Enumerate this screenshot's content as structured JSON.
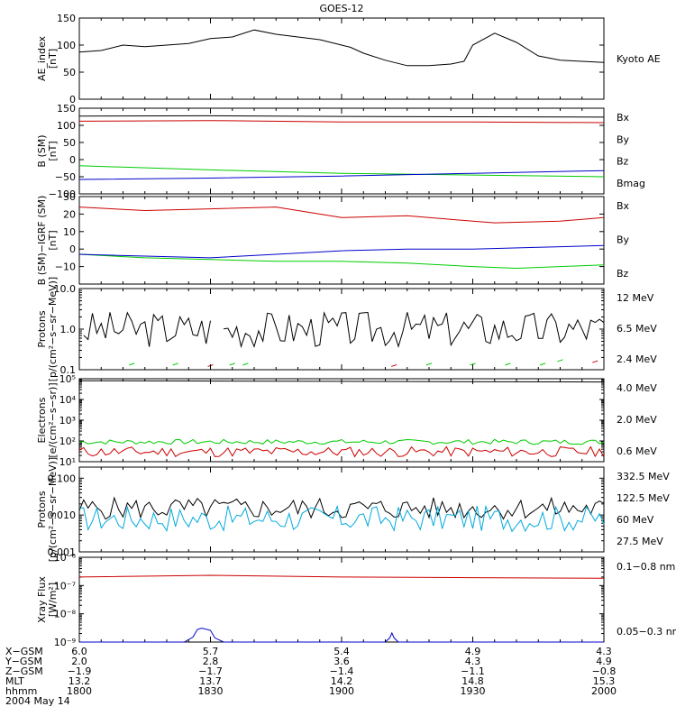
{
  "title": "GOES-12",
  "colors": {
    "black": "#000000",
    "red": "#cc0000",
    "green": "#00cc00",
    "blue": "#0000cc",
    "yellow": "#ffdd00",
    "cyan": "#00aadd"
  },
  "chart_data": [
    {
      "id": "ae",
      "type": "line",
      "ylabel": [
        "AE_index",
        "[nT]"
      ],
      "scale": "linear",
      "ylim": [
        0,
        150
      ],
      "yticks": [
        {
          "v": 0,
          "l": "0"
        },
        {
          "v": 50,
          "l": "50"
        },
        {
          "v": 100,
          "l": "100"
        },
        {
          "v": 150,
          "l": "150"
        }
      ],
      "legend": [
        {
          "text": "Kyoto AE",
          "color": "black"
        }
      ],
      "series": [
        {
          "name": "Kyoto AE",
          "color": "black",
          "x": [
            0,
            5,
            10,
            15,
            20,
            25,
            30,
            35,
            40,
            45,
            50,
            55,
            60,
            62,
            65,
            70,
            75,
            80,
            85,
            88,
            90,
            95,
            100,
            105,
            110,
            115,
            120
          ],
          "y": [
            87,
            90,
            100,
            97,
            100,
            103,
            112,
            115,
            128,
            120,
            115,
            110,
            100,
            96,
            85,
            72,
            62,
            62,
            65,
            70,
            100,
            122,
            105,
            80,
            72,
            70,
            68
          ]
        }
      ]
    },
    {
      "id": "b",
      "type": "line",
      "ylabel": [
        "B (SM)",
        "[nT]"
      ],
      "scale": "linear",
      "ylim": [
        -100,
        150
      ],
      "yticks": [
        {
          "v": -100,
          "l": "−100"
        },
        {
          "v": -50,
          "l": "−50"
        },
        {
          "v": 0,
          "l": "0"
        },
        {
          "v": 50,
          "l": "50"
        },
        {
          "v": 100,
          "l": "100"
        },
        {
          "v": 150,
          "l": "150"
        }
      ],
      "legend": [
        {
          "text": "Bx",
          "color": "blue"
        },
        {
          "text": "By",
          "color": "green"
        },
        {
          "text": "Bz",
          "color": "red"
        },
        {
          "text": "Bmag",
          "color": "black"
        }
      ],
      "series": [
        {
          "name": "Bmag",
          "color": "black",
          "x": [
            0,
            30,
            60,
            90,
            120
          ],
          "y": [
            127,
            128,
            126,
            125,
            124
          ]
        },
        {
          "name": "Bz",
          "color": "red",
          "x": [
            0,
            30,
            60,
            90,
            120
          ],
          "y": [
            112,
            114,
            110,
            110,
            108
          ]
        },
        {
          "name": "By",
          "color": "green",
          "x": [
            0,
            30,
            60,
            90,
            120
          ],
          "y": [
            -18,
            -30,
            -40,
            -45,
            -50
          ]
        },
        {
          "name": "Bx",
          "color": "blue",
          "x": [
            0,
            30,
            60,
            90,
            120
          ],
          "y": [
            -58,
            -54,
            -48,
            -40,
            -32
          ]
        }
      ]
    },
    {
      "id": "bigrf",
      "type": "line",
      "ylabel": [
        "B (SM)−IGRF (SM)",
        "[nT]"
      ],
      "scale": "linear",
      "ylim": [
        -20,
        30
      ],
      "yticks": [
        {
          "v": -20,
          "l": ""
        },
        {
          "v": -10,
          "l": "−10"
        },
        {
          "v": 0,
          "l": "0"
        },
        {
          "v": 10,
          "l": "10"
        },
        {
          "v": 20,
          "l": "20"
        },
        {
          "v": 30,
          "l": "30"
        }
      ],
      "legend": [
        {
          "text": "Bx",
          "color": "blue"
        },
        {
          "text": "By",
          "color": "green"
        },
        {
          "text": "Bz",
          "color": "red"
        }
      ],
      "series": [
        {
          "name": "Bz",
          "color": "red",
          "x": [
            0,
            15,
            30,
            45,
            55,
            60,
            75,
            90,
            95,
            110,
            120
          ],
          "y": [
            24,
            22,
            23,
            24,
            20,
            18,
            19,
            16,
            15,
            16,
            18
          ]
        },
        {
          "name": "By",
          "color": "green",
          "x": [
            0,
            15,
            30,
            45,
            60,
            75,
            90,
            100,
            110,
            120
          ],
          "y": [
            -3,
            -5,
            -6,
            -7,
            -7,
            -8,
            -10,
            -11,
            -10,
            -9
          ]
        },
        {
          "name": "Bx",
          "color": "blue",
          "x": [
            0,
            15,
            30,
            45,
            60,
            75,
            90,
            105,
            120
          ],
          "y": [
            -3,
            -4,
            -5,
            -3,
            -1,
            0,
            0,
            1,
            2
          ]
        }
      ]
    },
    {
      "id": "protons_low",
      "type": "line",
      "ylabel": [
        "Protons",
        "[p/(cm²−s−sr−MeV)]"
      ],
      "scale": "log",
      "ylim": [
        0.1,
        10
      ],
      "yticks": [
        {
          "v": 0.1,
          "l": "0.1"
        },
        {
          "v": 1,
          "l": "1.0"
        },
        {
          "v": 10,
          "l": "10.0"
        }
      ],
      "legend": [
        {
          "text": "12 MeV",
          "color": "red"
        },
        {
          "text": "6.5 MeV",
          "color": "green"
        },
        {
          "text": "2.4 MeV",
          "color": "black"
        }
      ],
      "series": [
        {
          "name": "2.4 MeV",
          "color": "black",
          "noise": {
            "center": 1.0,
            "spread": 0.45,
            "seed": 3
          },
          "x": [
            1,
            30
          ],
          "x2": [
            33,
            120
          ]
        },
        {
          "name": "6.5 MeV",
          "color": "green",
          "marks": [
            [
              12,
              0.13
            ],
            [
              22,
              0.13
            ],
            [
              35,
              0.13
            ],
            [
              38,
              0.13
            ],
            [
              80,
              0.13
            ],
            [
              90,
              0.13
            ],
            [
              98,
              0.13
            ],
            [
              106,
              0.13
            ],
            [
              110,
              0.16
            ]
          ]
        },
        {
          "name": "12 MeV",
          "color": "red",
          "marks": [
            [
              30,
              0.12
            ],
            [
              72,
              0.12
            ],
            [
              118,
              0.15
            ]
          ]
        }
      ]
    },
    {
      "id": "electrons",
      "type": "line",
      "ylabel": [
        "Electrons",
        "[e/(cm²−s−sr)]"
      ],
      "scale": "log",
      "ylim": [
        10,
        100000
      ],
      "yticks": [
        {
          "v": 10,
          "l": "10¹"
        },
        {
          "v": 100,
          "l": "10²"
        },
        {
          "v": 1000,
          "l": "10³"
        },
        {
          "v": 10000,
          "l": "10⁴"
        },
        {
          "v": 100000,
          "l": "10⁵"
        }
      ],
      "legend": [
        {
          "text": "4.0 MeV",
          "color": "red"
        },
        {
          "text": "2.0 MeV",
          "color": "green"
        },
        {
          "text": "0.6 MeV",
          "color": "black"
        }
      ],
      "series": [
        {
          "name": "0.6 MeV",
          "color": "black",
          "x": [
            0,
            60,
            120
          ],
          "y": [
            80000,
            75000,
            70000
          ]
        },
        {
          "name": "2.0 MeV",
          "color": "green",
          "noise": {
            "center": 90,
            "spread": 0.12,
            "seed": 7
          }
        },
        {
          "name": "4.0 MeV",
          "color": "red",
          "noise": {
            "center": 30,
            "spread": 0.25,
            "seed": 11
          }
        }
      ]
    },
    {
      "id": "protons_high",
      "type": "line",
      "ylabel": [
        "Protons",
        "[p/(cm²−s−sr−MeV)]"
      ],
      "scale": "log",
      "ylim": [
        0.001,
        0.2
      ],
      "yticks": [
        {
          "v": 0.001,
          "l": "0.001"
        },
        {
          "v": 0.01,
          "l": "0.010"
        },
        {
          "v": 0.1,
          "l": "0.100"
        }
      ],
      "legend": [
        {
          "text": "332.5 MeV",
          "color": "red"
        },
        {
          "text": "122.5 MeV",
          "color": "yellow"
        },
        {
          "text": "60 MeV",
          "color": "cyan"
        },
        {
          "text": "27.5 MeV",
          "color": "black"
        }
      ],
      "series": [
        {
          "name": "27.5 MeV",
          "color": "black",
          "noise": {
            "center": 0.015,
            "spread": 0.3,
            "seed": 5
          }
        },
        {
          "name": "60 MeV",
          "color": "cyan",
          "noise": {
            "center": 0.008,
            "spread": 0.35,
            "seed": 17
          }
        }
      ]
    },
    {
      "id": "xray",
      "type": "line",
      "ylabel": [
        "Xray Flux",
        "[W/m²]"
      ],
      "scale": "log",
      "ylim": [
        1e-09,
        1e-06
      ],
      "yticks": [
        {
          "v": 1e-09,
          "l": "10⁻⁹"
        },
        {
          "v": 1e-08,
          "l": "10⁻⁸"
        },
        {
          "v": 1e-07,
          "l": "10⁻⁷"
        },
        {
          "v": 1e-06,
          "l": "10⁻⁶"
        }
      ],
      "legend": [
        {
          "text": "0.1−0.8 nm",
          "color": "red"
        },
        {
          "text": "0.05−0.3 nm",
          "color": "blue"
        }
      ],
      "series": [
        {
          "name": "0.1−0.8 nm",
          "color": "red",
          "x": [
            0,
            30,
            60,
            90,
            120
          ],
          "y": [
            2e-07,
            2.3e-07,
            2e-07,
            1.9e-07,
            1.8e-07
          ]
        },
        {
          "name": "0.05−0.3 nm",
          "color": "blue",
          "x": [
            0,
            24,
            26,
            27,
            28,
            30,
            31,
            33,
            70,
            71,
            71.5,
            72,
            73,
            120
          ],
          "y": [
            1e-09,
            1e-09,
            1.5e-09,
            2.8e-09,
            3.1e-09,
            2.6e-09,
            1.4e-09,
            1e-09,
            1e-09,
            1.4e-09,
            2.1e-09,
            1.4e-09,
            1e-09,
            1e-09
          ]
        }
      ]
    }
  ],
  "xaxis": {
    "rows": [
      {
        "label": "X−GSM",
        "values": [
          "6.0",
          "5.7",
          "5.4",
          "4.9",
          "4.3"
        ]
      },
      {
        "label": "Y−GSM",
        "values": [
          "2.0",
          "2.8",
          "3.6",
          "4.3",
          "4.9"
        ]
      },
      {
        "label": "Z−GSM",
        "values": [
          "−1.9",
          "−1.7",
          "−1.4",
          "−1.1",
          "−0.8"
        ]
      },
      {
        "label": "MLT",
        "values": [
          "13.2",
          "13.7",
          "14.2",
          "14.8",
          "15.3"
        ]
      },
      {
        "label": "hhmm",
        "values": [
          "1800",
          "1830",
          "1900",
          "1930",
          "2000"
        ]
      }
    ],
    "date": "2004 May 14",
    "xlim": [
      0,
      120
    ]
  }
}
